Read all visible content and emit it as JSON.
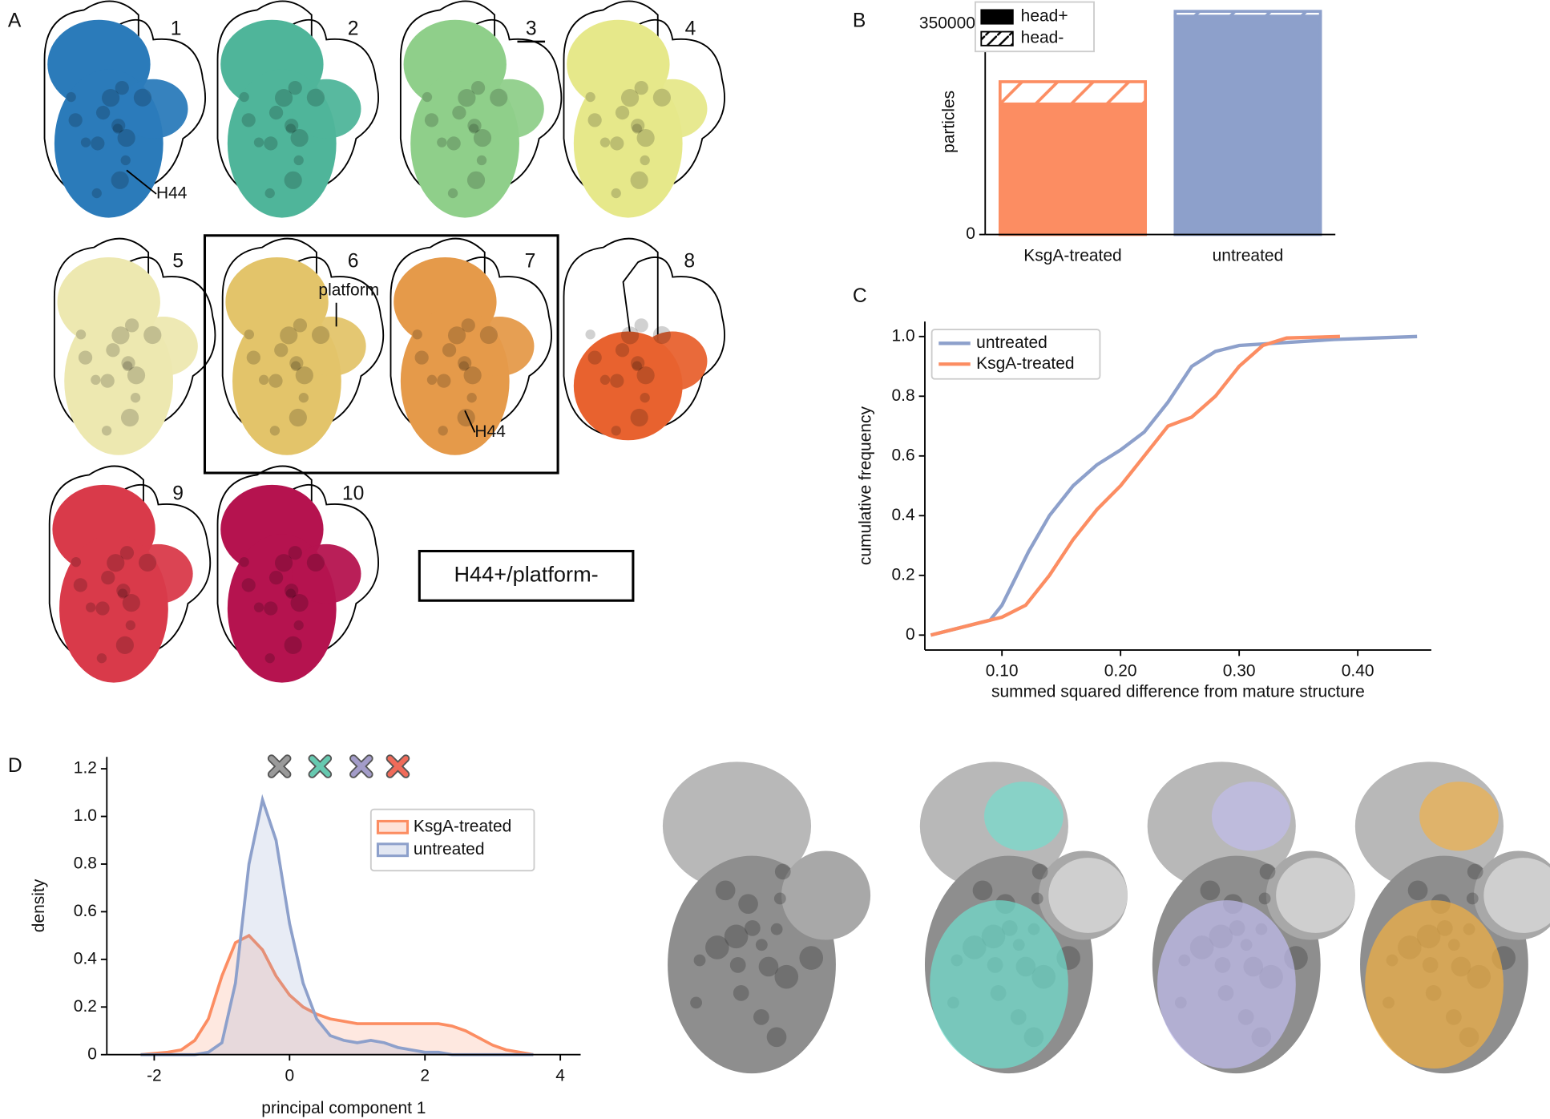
{
  "panel_labels": [
    "A",
    "B",
    "C",
    "D"
  ],
  "panel_a": {
    "map_numbers": [
      "1",
      "2",
      "3",
      "4",
      "5",
      "6",
      "7",
      "8",
      "9",
      "10"
    ],
    "annotations": [
      "H44",
      "platform",
      "H44"
    ],
    "class_label": "H44+/platform-"
  },
  "chart_data": [
    {
      "type": "bar",
      "y_label": "particles",
      "categories": [
        "KsgA-treated",
        "untreated"
      ],
      "colors": [
        "#fc8d62",
        "#8da0cb"
      ],
      "stacked": true,
      "series": [
        {
          "name": "head+",
          "color": "#000000",
          "values": [
            217000,
            363000
          ]
        },
        {
          "name": "head-",
          "color": "#000000",
          "hatch": true,
          "values": [
            37000,
            8000
          ]
        }
      ],
      "ylim": [
        0,
        375000
      ],
      "yticks": [
        0,
        350000
      ],
      "legend": "upper left"
    },
    {
      "type": "line",
      "x_label": "summed squared difference from mature structure",
      "y_label": "cumulative frequency",
      "series": [
        {
          "name": "untreated",
          "color": "#8da0cb",
          "x": [
            0.04,
            0.06,
            0.08,
            0.09,
            0.1,
            0.11,
            0.1225,
            0.14,
            0.16,
            0.18,
            0.2,
            0.22,
            0.24,
            0.26,
            0.28,
            0.3,
            0.34,
            0.38,
            0.45
          ],
          "values": [
            0,
            0.02,
            0.04,
            0.05,
            0.1,
            0.18,
            0.28,
            0.4,
            0.5,
            0.57,
            0.62,
            0.68,
            0.78,
            0.9,
            0.95,
            0.97,
            0.98,
            0.99,
            1.0
          ]
        },
        {
          "name": "KsgA-treated",
          "color": "#fc8d62",
          "x": [
            0.04,
            0.06,
            0.08,
            0.1,
            0.12,
            0.14,
            0.16,
            0.18,
            0.2,
            0.22,
            0.24,
            0.26,
            0.28,
            0.3,
            0.32,
            0.34,
            0.385
          ],
          "values": [
            0,
            0.02,
            0.04,
            0.06,
            0.1,
            0.2,
            0.32,
            0.42,
            0.5,
            0.6,
            0.7,
            0.73,
            0.8,
            0.9,
            0.97,
            0.995,
            1.0
          ]
        }
      ],
      "xlim": [
        0.035,
        0.462
      ],
      "ylim": [
        -0.05,
        1.05
      ],
      "xticks": [
        {
          "value": 0.1,
          "label": "0.10"
        },
        {
          "value": 0.2,
          "label": "0.20"
        },
        {
          "value": 0.3,
          "label": "0.30"
        },
        {
          "value": 0.4,
          "label": "0.40"
        }
      ],
      "yticks": [
        0,
        0.2,
        0.4,
        0.6,
        0.8,
        {
          "value": 1,
          "label": "1.0"
        }
      ],
      "legend": "upper left"
    },
    {
      "type": "area",
      "x_label": "principal component 1",
      "y_label": "density",
      "x": [
        -2.2,
        -2.0,
        -1.8,
        -1.6,
        -1.4,
        -1.2,
        -1.0,
        -0.8,
        -0.6,
        -0.4,
        -0.2,
        0,
        0.2,
        0.4,
        0.6,
        0.8,
        1.0,
        1.2,
        1.4,
        1.6,
        1.8,
        2.0,
        2.2,
        2.4,
        2.6,
        2.8,
        3.0,
        3.2,
        3.4,
        3.6
      ],
      "series": [
        {
          "name": "KsgA-treated",
          "color": "#fc8d62",
          "values": [
            0,
            0.005,
            0.01,
            0.02,
            0.06,
            0.15,
            0.33,
            0.47,
            0.5,
            0.44,
            0.33,
            0.25,
            0.2,
            0.17,
            0.15,
            0.14,
            0.13,
            0.13,
            0.13,
            0.13,
            0.13,
            0.13,
            0.13,
            0.12,
            0.1,
            0.07,
            0.04,
            0.02,
            0.01,
            0
          ]
        },
        {
          "name": "untreated",
          "color": "#8da0cb",
          "values": [
            0,
            0,
            0,
            0,
            0,
            0.01,
            0.05,
            0.3,
            0.8,
            1.07,
            0.9,
            0.55,
            0.3,
            0.15,
            0.08,
            0.06,
            0.05,
            0.06,
            0.05,
            0.03,
            0.02,
            0.01,
            0.01,
            0,
            0,
            0,
            0,
            0,
            0,
            0
          ]
        }
      ],
      "markers": {
        "x": [
          -0.15,
          0.45,
          1.06,
          1.6
        ],
        "y": [
          1.21,
          1.21,
          1.21,
          1.21
        ],
        "colors": [
          "#9a9a9a",
          "#66c9b0",
          "#a39cc9",
          "#f06b5a"
        ]
      },
      "xlim": [
        -2.7,
        4.3
      ],
      "ylim": [
        0,
        1.25
      ],
      "xticks": [
        -2,
        0,
        2,
        4
      ],
      "yticks": [
        0,
        0.2,
        0.4,
        0.6,
        0.8,
        {
          "value": 1,
          "label": "1.0"
        },
        1.2
      ],
      "legend": "upper right"
    }
  ]
}
